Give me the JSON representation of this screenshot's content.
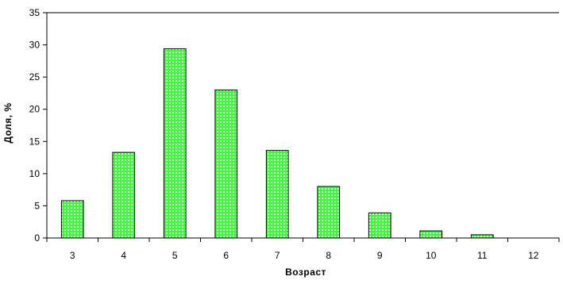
{
  "chart_data": {
    "type": "bar",
    "xlabel": "Возраст",
    "ylabel": "Доля, %",
    "categories": [
      "3",
      "4",
      "5",
      "6",
      "7",
      "8",
      "9",
      "10",
      "11",
      "12"
    ],
    "values": [
      5.8,
      13.3,
      29.4,
      23.0,
      13.6,
      8.0,
      3.9,
      1.1,
      0.5,
      0
    ],
    "ylim": [
      0,
      35
    ],
    "yticks": [
      0,
      5,
      10,
      15,
      20,
      25,
      30,
      35
    ],
    "grid": false,
    "legend": "none",
    "bar_color": "#33ff33",
    "bar_pattern_color": "#ffffff",
    "bar_edge_color": "#000000"
  }
}
